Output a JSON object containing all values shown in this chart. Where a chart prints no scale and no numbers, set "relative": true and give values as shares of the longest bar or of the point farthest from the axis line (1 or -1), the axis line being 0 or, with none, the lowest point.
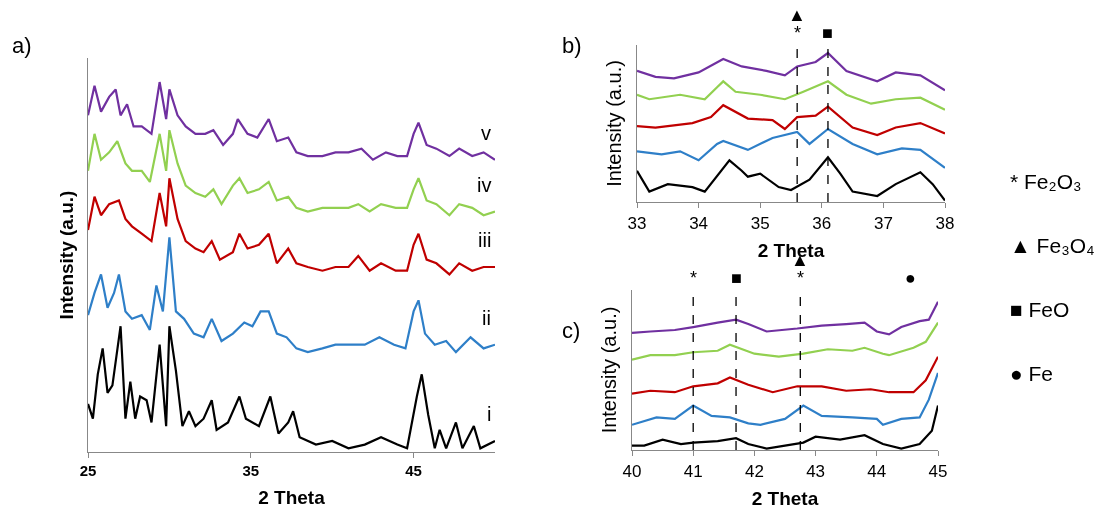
{
  "chart_data": [
    {
      "type": "line",
      "title": "a)",
      "xlabel": "2 Theta",
      "ylabel": "Intensity (a.u.)",
      "relative": true,
      "xlim": [
        25,
        50
      ],
      "xticks": [
        25,
        35,
        45
      ],
      "series": [
        {
          "name": "i",
          "color": "#000000",
          "x": [
            25.0,
            25.3,
            25.6,
            25.9,
            26.2,
            26.5,
            27.0,
            27.3,
            27.6,
            27.9,
            28.2,
            28.6,
            28.9,
            29.4,
            29.8,
            30.0,
            30.4,
            30.8,
            31.2,
            31.6,
            32.1,
            32.6,
            32.9,
            33.6,
            34.3,
            34.7,
            35.5,
            36.2,
            36.7,
            37.3,
            37.6,
            38.0,
            39.0,
            40.0,
            41.0,
            42.0,
            43.0,
            44.0,
            44.6,
            45.2,
            45.5,
            45.9,
            46.3,
            46.6,
            47.0,
            47.6,
            48.0,
            48.7,
            49.1,
            50.0
          ],
          "values": [
            0.13,
            0.09,
            0.21,
            0.28,
            0.16,
            0.18,
            0.34,
            0.09,
            0.19,
            0.09,
            0.15,
            0.14,
            0.08,
            0.29,
            0.07,
            0.34,
            0.22,
            0.07,
            0.11,
            0.07,
            0.09,
            0.14,
            0.06,
            0.08,
            0.15,
            0.09,
            0.07,
            0.15,
            0.05,
            0.08,
            0.11,
            0.04,
            0.02,
            0.03,
            0.01,
            0.02,
            0.04,
            0.02,
            0.01,
            0.15,
            0.21,
            0.1,
            0.01,
            0.06,
            0.01,
            0.08,
            0.01,
            0.07,
            0.01,
            0.03
          ]
        },
        {
          "name": "ii",
          "color": "#2e7fc8",
          "x": [
            25.0,
            25.4,
            25.8,
            26.2,
            26.6,
            26.9,
            27.3,
            27.7,
            28.3,
            28.8,
            29.2,
            29.6,
            30.0,
            30.4,
            30.9,
            31.5,
            32.1,
            32.6,
            33.2,
            33.9,
            34.6,
            35.1,
            35.6,
            36.1,
            36.6,
            37.2,
            37.8,
            38.5,
            39.4,
            40.2,
            41.2,
            42.0,
            42.9,
            43.8,
            44.5,
            45.0,
            45.3,
            45.7,
            46.3,
            47.0,
            47.6,
            48.5,
            49.3,
            50.0
          ],
          "values": [
            0.37,
            0.43,
            0.48,
            0.39,
            0.43,
            0.48,
            0.38,
            0.36,
            0.37,
            0.33,
            0.45,
            0.38,
            0.58,
            0.38,
            0.36,
            0.32,
            0.31,
            0.36,
            0.3,
            0.32,
            0.35,
            0.34,
            0.38,
            0.38,
            0.32,
            0.31,
            0.28,
            0.27,
            0.28,
            0.29,
            0.29,
            0.29,
            0.31,
            0.29,
            0.28,
            0.38,
            0.41,
            0.32,
            0.29,
            0.3,
            0.27,
            0.31,
            0.28,
            0.29
          ]
        },
        {
          "name": "iii",
          "color": "#c00000",
          "x": [
            25.0,
            25.4,
            25.8,
            26.3,
            26.9,
            27.3,
            27.7,
            28.3,
            28.9,
            29.4,
            29.8,
            30.0,
            30.5,
            31.0,
            31.6,
            32.1,
            32.6,
            33.1,
            33.9,
            34.3,
            34.8,
            35.5,
            36.1,
            36.6,
            37.3,
            37.8,
            38.5,
            39.4,
            40.2,
            41.0,
            41.6,
            42.3,
            43.0,
            43.9,
            44.6,
            45.0,
            45.3,
            45.8,
            46.4,
            47.2,
            47.8,
            48.6,
            49.3,
            50.0
          ],
          "values": [
            0.6,
            0.69,
            0.64,
            0.67,
            0.68,
            0.63,
            0.61,
            0.59,
            0.57,
            0.7,
            0.61,
            0.74,
            0.63,
            0.57,
            0.55,
            0.54,
            0.57,
            0.52,
            0.54,
            0.59,
            0.55,
            0.56,
            0.59,
            0.51,
            0.55,
            0.51,
            0.5,
            0.49,
            0.5,
            0.5,
            0.53,
            0.49,
            0.51,
            0.49,
            0.49,
            0.56,
            0.59,
            0.52,
            0.51,
            0.48,
            0.51,
            0.49,
            0.5,
            0.5
          ]
        },
        {
          "name": "iv",
          "color": "#92d050",
          "x": [
            25.0,
            25.4,
            25.8,
            26.3,
            26.8,
            27.3,
            27.7,
            28.3,
            28.8,
            29.4,
            29.8,
            30.0,
            30.5,
            31.0,
            31.6,
            32.2,
            32.7,
            33.2,
            33.9,
            34.3,
            34.8,
            35.5,
            36.1,
            36.6,
            37.3,
            37.8,
            38.5,
            39.4,
            40.2,
            41.0,
            41.6,
            42.3,
            43.0,
            43.9,
            44.6,
            45.0,
            45.3,
            45.8,
            46.4,
            47.2,
            47.8,
            48.6,
            49.3,
            50.0
          ],
          "values": [
            0.76,
            0.86,
            0.79,
            0.81,
            0.84,
            0.78,
            0.76,
            0.76,
            0.73,
            0.86,
            0.76,
            0.87,
            0.78,
            0.72,
            0.7,
            0.69,
            0.71,
            0.67,
            0.72,
            0.74,
            0.7,
            0.71,
            0.73,
            0.68,
            0.69,
            0.66,
            0.65,
            0.66,
            0.66,
            0.66,
            0.67,
            0.65,
            0.67,
            0.66,
            0.66,
            0.71,
            0.74,
            0.68,
            0.67,
            0.64,
            0.67,
            0.66,
            0.64,
            0.65
          ]
        },
        {
          "name": "v",
          "color": "#7030a0",
          "x": [
            25.0,
            25.4,
            25.8,
            26.3,
            26.7,
            27.0,
            27.4,
            27.8,
            28.3,
            28.9,
            29.4,
            29.8,
            30.0,
            30.5,
            31.0,
            31.6,
            32.2,
            32.7,
            33.3,
            33.9,
            34.2,
            34.8,
            35.4,
            36.1,
            36.6,
            37.3,
            37.8,
            38.5,
            39.4,
            40.2,
            41.0,
            41.8,
            42.5,
            43.3,
            44.0,
            44.6,
            45.0,
            45.3,
            45.8,
            46.4,
            47.2,
            47.8,
            48.6,
            49.3,
            50.0
          ],
          "values": [
            0.91,
            0.99,
            0.92,
            0.96,
            0.98,
            0.91,
            0.94,
            0.88,
            0.88,
            0.86,
            1,
            0.9,
            0.98,
            0.91,
            0.88,
            0.86,
            0.86,
            0.87,
            0.83,
            0.86,
            0.9,
            0.86,
            0.85,
            0.9,
            0.84,
            0.85,
            0.81,
            0.8,
            0.8,
            0.81,
            0.81,
            0.82,
            0.79,
            0.81,
            0.8,
            0.8,
            0.86,
            0.89,
            0.83,
            0.82,
            0.8,
            0.82,
            0.8,
            0.81,
            0.79
          ]
        }
      ]
    },
    {
      "type": "line",
      "title": "b)",
      "xlabel": "2 Theta",
      "ylabel": "Intensity (a.u.)",
      "relative": true,
      "xlim": [
        33,
        38
      ],
      "xticks": [
        33,
        34,
        35,
        36,
        37,
        38
      ],
      "series": [
        {
          "color": "#000000",
          "x": [
            33.0,
            33.2,
            33.5,
            33.9,
            34.1,
            34.5,
            34.7,
            34.8,
            35.0,
            35.3,
            35.5,
            35.8,
            36.1,
            36.3,
            36.5,
            36.9,
            37.2,
            37.6,
            37.8,
            38.0
          ],
          "values": [
            0.21,
            0.07,
            0.12,
            0.1,
            0.07,
            0.28,
            0.21,
            0.17,
            0.19,
            0.1,
            0.08,
            0.15,
            0.3,
            0.19,
            0.07,
            0.04,
            0.12,
            0.2,
            0.12,
            0.01
          ]
        },
        {
          "color": "#2e7fc8",
          "x": [
            33.0,
            33.4,
            33.7,
            34.0,
            34.3,
            34.4,
            34.8,
            35.2,
            35.6,
            35.8,
            36.1,
            36.5,
            36.9,
            37.3,
            37.6,
            38.0
          ],
          "values": [
            0.34,
            0.32,
            0.34,
            0.28,
            0.39,
            0.41,
            0.35,
            0.43,
            0.47,
            0.39,
            0.49,
            0.39,
            0.32,
            0.36,
            0.35,
            0.23
          ]
        },
        {
          "color": "#c00000",
          "x": [
            33.0,
            33.3,
            33.9,
            34.2,
            34.4,
            34.8,
            35.2,
            35.4,
            35.6,
            35.9,
            36.1,
            36.5,
            36.9,
            37.2,
            37.6,
            38.0
          ],
          "values": [
            0.51,
            0.5,
            0.53,
            0.57,
            0.65,
            0.56,
            0.55,
            0.49,
            0.57,
            0.58,
            0.64,
            0.5,
            0.45,
            0.5,
            0.53,
            0.46
          ]
        },
        {
          "color": "#92d050",
          "x": [
            33.0,
            33.2,
            33.7,
            34.1,
            34.3,
            34.4,
            34.6,
            35.0,
            35.4,
            35.7,
            36.1,
            36.4,
            36.8,
            37.2,
            37.6,
            38.0
          ],
          "values": [
            0.72,
            0.69,
            0.72,
            0.69,
            0.77,
            0.81,
            0.74,
            0.72,
            0.69,
            0.74,
            0.81,
            0.72,
            0.66,
            0.69,
            0.7,
            0.62
          ]
        },
        {
          "color": "#7030a0",
          "x": [
            33.0,
            33.3,
            33.6,
            34.0,
            34.4,
            34.7,
            35.1,
            35.4,
            35.6,
            35.9,
            36.1,
            36.4,
            36.9,
            37.2,
            37.6,
            38.0
          ],
          "values": [
            0.88,
            0.84,
            0.83,
            0.87,
            0.96,
            0.91,
            0.88,
            0.85,
            0.91,
            0.94,
            1,
            0.88,
            0.81,
            0.87,
            0.85,
            0.75
          ]
        }
      ],
      "ref_lines": [
        {
          "axis": "x",
          "value": 35.6,
          "label": "*",
          "line_style": "dashed",
          "color": "#000000"
        },
        {
          "axis": "x",
          "value": 36.1,
          "label": "■",
          "line_style": "dashed",
          "color": "#000000"
        }
      ],
      "annotations": [
        "▲"
      ]
    },
    {
      "type": "line",
      "title": "c)",
      "xlabel": "2 Theta",
      "ylabel": "Intensity (a.u.)",
      "relative": true,
      "xlim": [
        40,
        45
      ],
      "xticks": [
        40,
        41,
        42,
        43,
        44,
        45
      ],
      "series": [
        {
          "color": "#000000",
          "x": [
            40.0,
            40.2,
            40.5,
            40.8,
            41.0,
            41.4,
            41.7,
            41.9,
            42.2,
            42.5,
            42.8,
            43.0,
            43.4,
            43.8,
            44.1,
            44.4,
            44.7,
            44.9,
            45.0
          ],
          "values": [
            0.03,
            0.03,
            0.07,
            0.04,
            0.05,
            0.06,
            0.08,
            0.04,
            0.01,
            0.03,
            0.05,
            0.09,
            0.07,
            0.1,
            0.04,
            0.01,
            0.04,
            0.13,
            0.3
          ]
        },
        {
          "color": "#2e7fc8",
          "x": [
            40.0,
            40.4,
            40.7,
            41.0,
            41.3,
            41.6,
            41.9,
            42.1,
            42.5,
            42.8,
            43.1,
            43.6,
            44.0,
            44.1,
            44.4,
            44.7,
            44.85,
            45.0
          ],
          "values": [
            0.17,
            0.22,
            0.21,
            0.3,
            0.23,
            0.22,
            0.18,
            0.17,
            0.21,
            0.3,
            0.23,
            0.22,
            0.21,
            0.17,
            0.21,
            0.22,
            0.34,
            0.52
          ]
        },
        {
          "color": "#c00000",
          "x": [
            40.0,
            40.3,
            40.7,
            41.0,
            41.4,
            41.6,
            41.9,
            42.3,
            42.7,
            43.1,
            43.5,
            43.9,
            44.2,
            44.6,
            44.8,
            45.0
          ],
          "values": [
            0.38,
            0.4,
            0.39,
            0.43,
            0.45,
            0.49,
            0.44,
            0.39,
            0.43,
            0.43,
            0.4,
            0.41,
            0.39,
            0.39,
            0.47,
            0.63
          ]
        },
        {
          "color": "#92d050",
          "x": [
            40.0,
            40.3,
            40.7,
            41.0,
            41.4,
            41.6,
            42.0,
            42.4,
            42.8,
            43.2,
            43.6,
            43.8,
            44.1,
            44.2,
            44.6,
            44.8,
            45.0
          ],
          "values": [
            0.61,
            0.64,
            0.64,
            0.66,
            0.67,
            0.71,
            0.65,
            0.63,
            0.65,
            0.68,
            0.67,
            0.69,
            0.65,
            0.64,
            0.69,
            0.73,
            0.86
          ]
        },
        {
          "color": "#7030a0",
          "x": [
            40.0,
            40.3,
            40.7,
            41.0,
            41.4,
            41.7,
            41.9,
            42.2,
            42.7,
            43.1,
            43.5,
            43.8,
            44.0,
            44.2,
            44.4,
            44.7,
            44.85,
            45.0
          ],
          "values": [
            0.79,
            0.8,
            0.81,
            0.83,
            0.86,
            0.88,
            0.85,
            0.8,
            0.82,
            0.84,
            0.85,
            0.86,
            0.8,
            0.78,
            0.83,
            0.87,
            0.88,
            1
          ]
        }
      ],
      "ref_lines": [
        {
          "axis": "x",
          "value": 41.0,
          "label": "*",
          "line_style": "dashed",
          "color": "#000000"
        },
        {
          "axis": "x",
          "value": 41.7,
          "label": "■",
          "line_style": "dashed",
          "color": "#000000"
        },
        {
          "axis": "x",
          "value": 42.75,
          "label": "*",
          "line_style": "dashed",
          "color": "#000000"
        }
      ],
      "annotations": [
        "▲",
        "●"
      ]
    },
    {
      "type": "other",
      "annotations": [
        "* Fe₂O₃",
        "▲ Fe₃O₄",
        "■ FeO",
        "● Fe"
      ]
    }
  ]
}
